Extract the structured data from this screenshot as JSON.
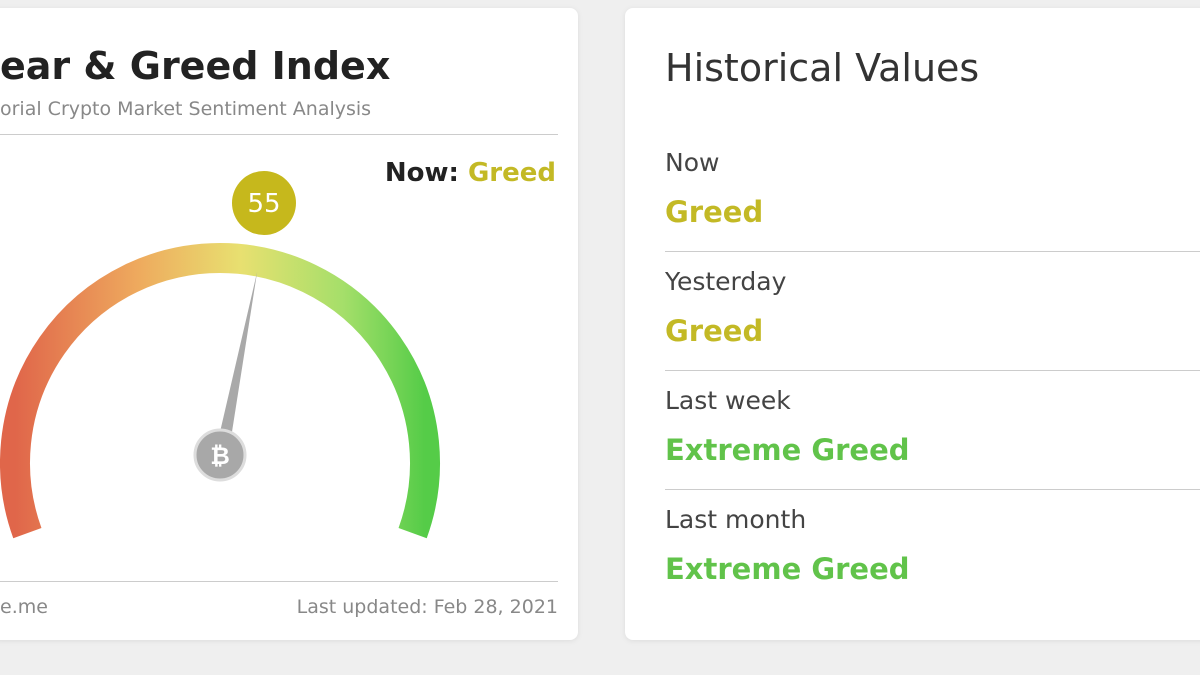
{
  "index_card": {
    "title": "ear & Greed Index",
    "subtitle": "orial Crypto Market Sentiment Analysis",
    "now_label": "Now:",
    "now_status": "Greed",
    "gauge": {
      "value": 55
    },
    "source": "e.me",
    "last_updated": "Last updated: Feb 28, 2021"
  },
  "historical": {
    "title": "Historical Values",
    "rows": [
      {
        "label": "Now",
        "status": "Greed"
      },
      {
        "label": "Yesterday",
        "status": "Greed"
      },
      {
        "label": "Last week",
        "status": "Extreme Greed"
      },
      {
        "label": "Last month",
        "status": "Extreme Greed"
      }
    ]
  }
}
